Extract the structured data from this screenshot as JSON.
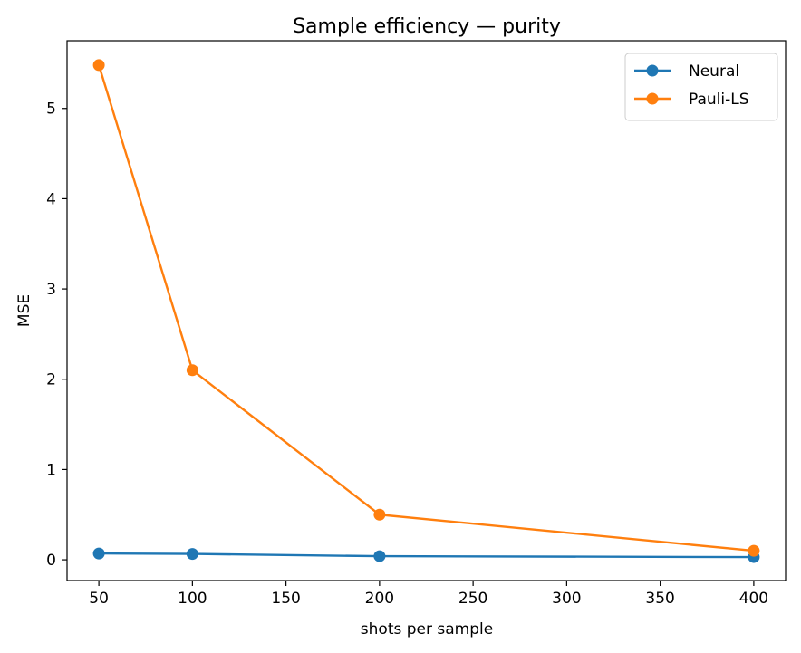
{
  "chart_data": {
    "type": "line",
    "title": "Sample efficiency — purity",
    "xlabel": "shots per sample",
    "ylabel": "MSE",
    "xlim": [
      33,
      417
    ],
    "ylim": [
      -0.23,
      5.75
    ],
    "xticks": [
      50,
      100,
      150,
      200,
      250,
      300,
      350,
      400
    ],
    "yticks": [
      0,
      1,
      2,
      3,
      4,
      5
    ],
    "grid": false,
    "legend_position": "top-right",
    "series": [
      {
        "name": "Neural",
        "color": "#1f77b4",
        "marker": "circle",
        "x": [
          50,
          100,
          200,
          400
        ],
        "y": [
          0.07,
          0.065,
          0.04,
          0.03
        ]
      },
      {
        "name": "Pauli-LS",
        "color": "#ff7f0e",
        "marker": "circle",
        "x": [
          50,
          100,
          200,
          400
        ],
        "y": [
          5.48,
          2.1,
          0.5,
          0.1
        ]
      }
    ]
  }
}
